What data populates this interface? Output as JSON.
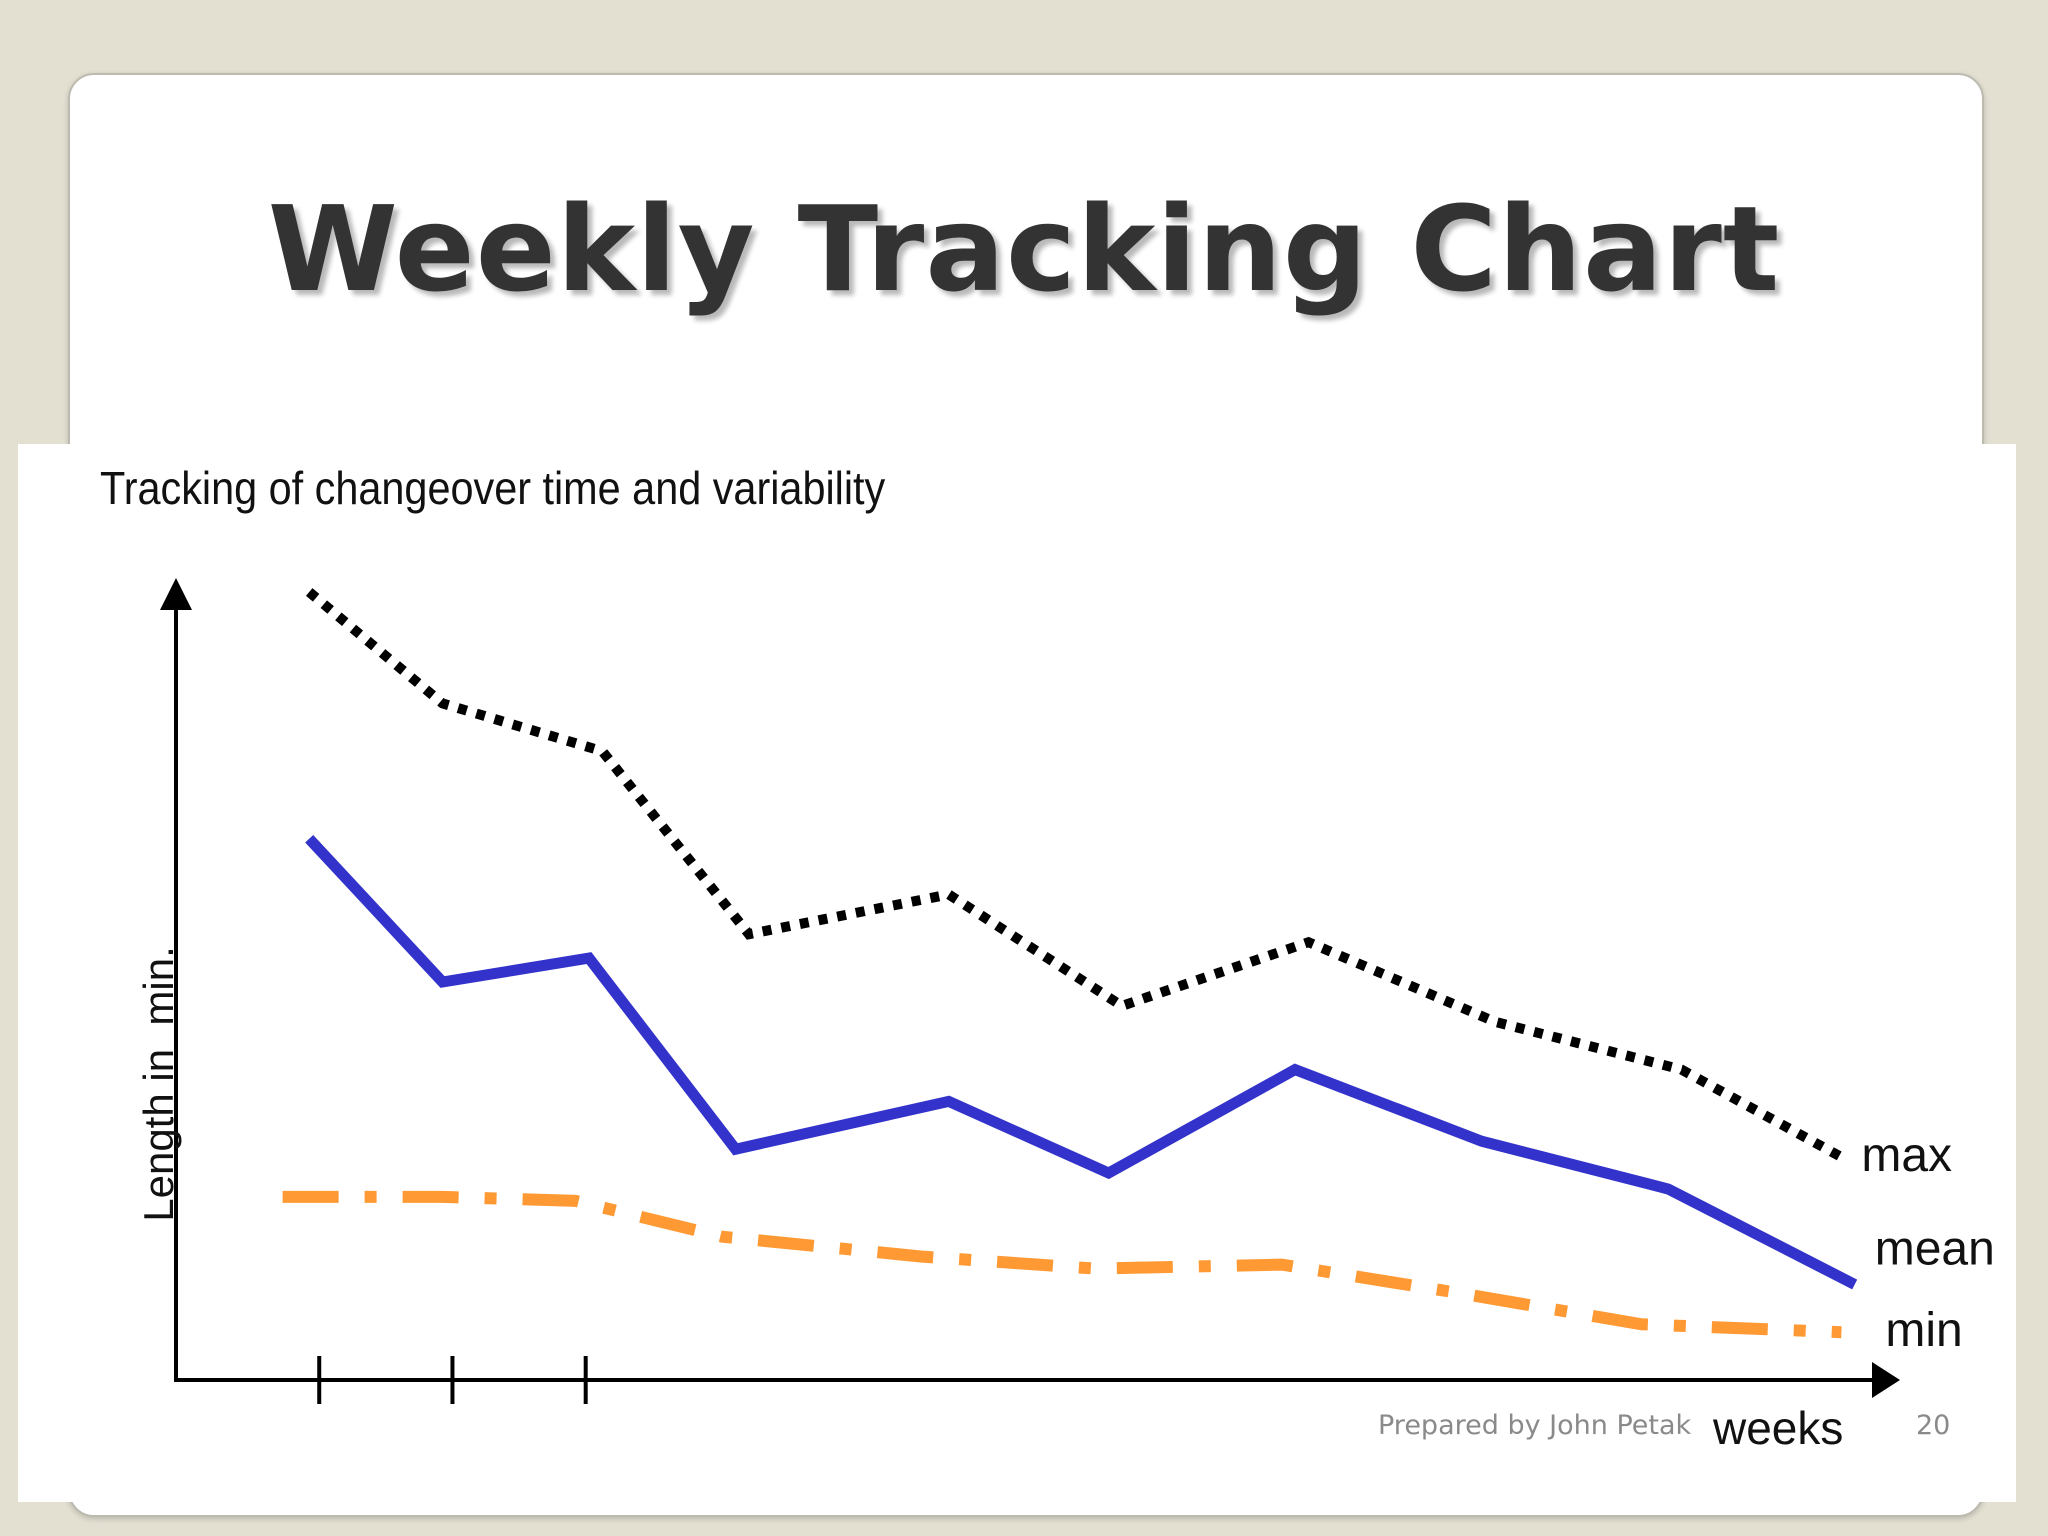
{
  "slide": {
    "title": "Weekly Tracking Chart",
    "footer": "Prepared by John Petak",
    "page_number": "20"
  },
  "chart_data": {
    "type": "line",
    "title": "Tracking of changeover time and variability",
    "xlabel": "weeks",
    "ylabel": "Length in  min.",
    "xlim": [
      0,
      13
    ],
    "ylim": [
      0,
      100
    ],
    "ticks": [
      1,
      2,
      3
    ],
    "series": [
      {
        "name": "max",
        "color": "#000000",
        "style": "dotted",
        "points": [
          [
            1,
            99
          ],
          [
            2,
            85
          ],
          [
            3.2,
            79
          ],
          [
            4.3,
            56
          ],
          [
            5.8,
            61
          ],
          [
            7.1,
            47
          ],
          [
            8.5,
            55
          ],
          [
            9.9,
            45
          ],
          [
            11.3,
            39
          ],
          [
            12.5,
            28
          ]
        ]
      },
      {
        "name": "mean",
        "color": "#3333cc",
        "style": "solid",
        "points": [
          [
            1,
            68
          ],
          [
            2,
            50
          ],
          [
            3.1,
            53
          ],
          [
            4.2,
            29
          ],
          [
            5.8,
            35
          ],
          [
            7.0,
            26
          ],
          [
            8.4,
            39
          ],
          [
            9.8,
            30
          ],
          [
            11.2,
            24
          ],
          [
            12.6,
            12
          ]
        ]
      },
      {
        "name": "min",
        "color": "#ff9933",
        "style": "dashdot",
        "points": [
          [
            0.8,
            23
          ],
          [
            2,
            23
          ],
          [
            3,
            22.5
          ],
          [
            4.1,
            18
          ],
          [
            5.6,
            15.5
          ],
          [
            6.9,
            14
          ],
          [
            8.3,
            14.5
          ],
          [
            9.6,
            11
          ],
          [
            11,
            7
          ],
          [
            12.5,
            6
          ]
        ]
      }
    ]
  }
}
